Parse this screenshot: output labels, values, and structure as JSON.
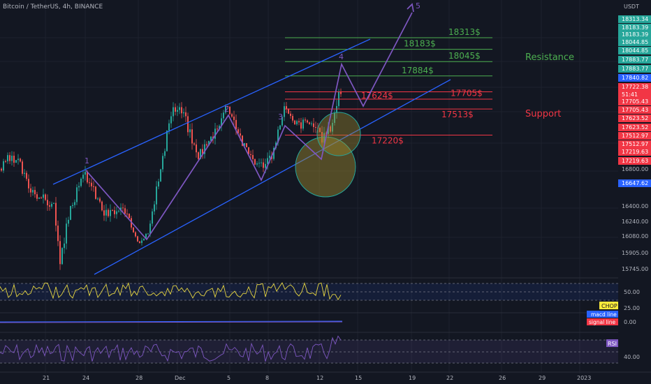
{
  "header": {
    "symbol": "Bitcoin / TetherUS, 4h, BINANCE",
    "currency": "USDT"
  },
  "colors": {
    "background": "#131722",
    "grid": "#1e222d",
    "text": "#b2b5be",
    "up": "#26a69a",
    "down": "#ef5350",
    "channel": "#2962ff",
    "wave": "#7e57c2",
    "resistance": "#4caf50",
    "support": "#f23645",
    "circle": "#a08c2e"
  },
  "price_axis": {
    "labels": [
      "18313.34",
      "18183.39",
      "18183.39",
      "18044.85",
      "18044.85",
      "17883.77",
      "17883.77",
      "17840.82",
      "17722.38",
      "51:41",
      "17705.43",
      "17705.43",
      "17623.52",
      "17623.52",
      "17512.97",
      "17512.97",
      "17219.63",
      "17219.63",
      "16800.00",
      "16647.62",
      "16400.00",
      "16240.00",
      "16080.00",
      "15905.00",
      "15745.00"
    ],
    "current_price": "17722.38",
    "countdown": "51:41"
  },
  "chart_data": {
    "type": "candlestick",
    "ylim": [
      15700,
      18700
    ],
    "x_ticks": [
      "21",
      "24",
      "28",
      "Dec",
      "5",
      "8",
      "12",
      "15",
      "19",
      "22",
      "26",
      "29",
      "2023"
    ],
    "resistance_levels": [
      {
        "label": "18313$",
        "value": 18313.34
      },
      {
        "label": "18183$",
        "value": 18183.39
      },
      {
        "label": "18045$",
        "value": 18044.85
      },
      {
        "label": "17884$",
        "value": 17883.77
      }
    ],
    "support_levels": [
      {
        "label": "17705$",
        "value": 17705.43
      },
      {
        "label": "17624$",
        "value": 17623.52
      },
      {
        "label": "17513$",
        "value": 17512.97
      },
      {
        "label": "17220$",
        "value": 17219.63
      }
    ],
    "annotations": {
      "resistance": "Resistance",
      "support": "Support"
    },
    "wave_labels": [
      "1",
      "2",
      "3",
      "4",
      "5"
    ],
    "indicators": {
      "chop": {
        "label": "CHOP",
        "ticks": [
          "50.00",
          "25.00"
        ]
      },
      "macd": {
        "labels": [
          "macd line",
          "signal line"
        ],
        "ticks": [
          "0.00"
        ]
      },
      "rsi": {
        "label": "RSI",
        "ticks": [
          "40.00"
        ]
      }
    }
  }
}
